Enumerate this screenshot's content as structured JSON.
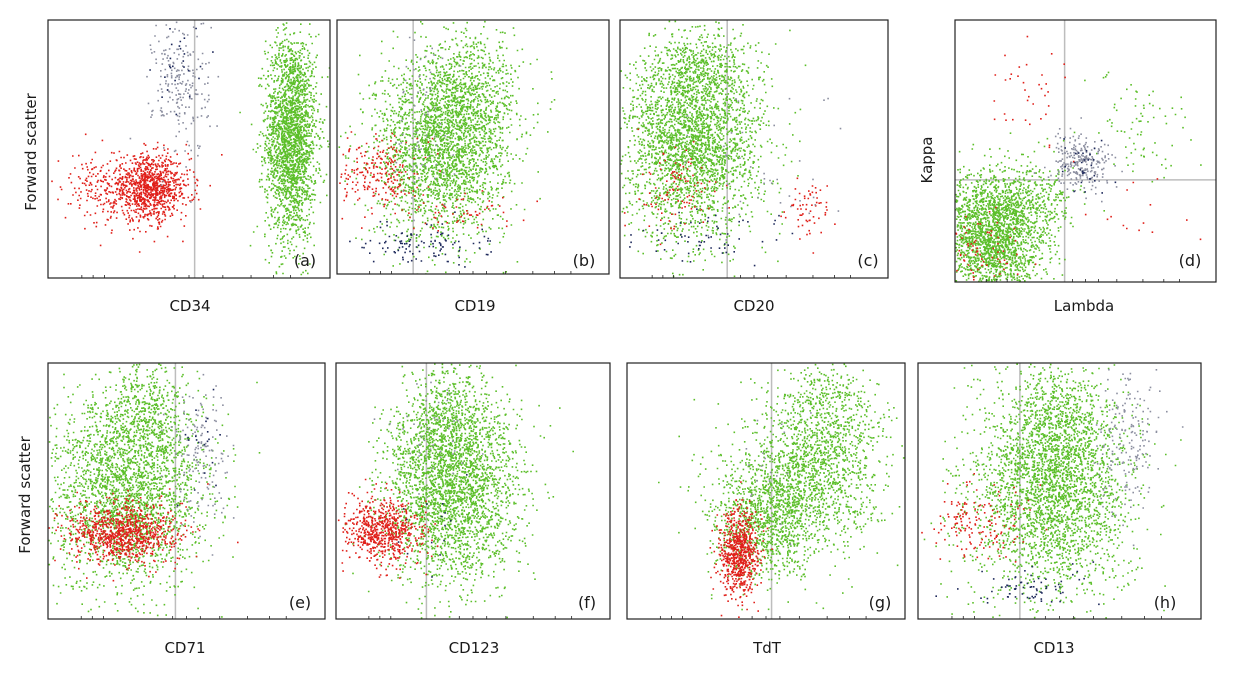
{
  "figure": {
    "row_ylabels": [
      "Forward scatter",
      "Forward scatter"
    ]
  },
  "colors": {
    "green": "#5cbf2a",
    "red": "#e0201a",
    "gray": "#8c8fa0",
    "navy": "#1f2a5c",
    "frame": "#222222",
    "gate": "#bdbdbd"
  },
  "chart_data": [
    {
      "type": "scatter",
      "panel": "(a)",
      "xlabel": "CD34",
      "ylabel": "Forward scatter",
      "xlim": [
        0,
        1
      ],
      "ylim": [
        0,
        1
      ],
      "x_gate": 0.52,
      "y_gate": null,
      "series": [
        {
          "color": "green",
          "clusters": [
            {
              "cx": 0.86,
              "cy": 0.55,
              "sx": 0.045,
              "sy": 0.2,
              "n": 2300
            }
          ]
        },
        {
          "color": "red",
          "clusters": [
            {
              "cx": 0.36,
              "cy": 0.35,
              "sx": 0.07,
              "sy": 0.06,
              "n": 900
            },
            {
              "cx": 0.22,
              "cy": 0.35,
              "sx": 0.1,
              "sy": 0.07,
              "n": 250
            }
          ]
        },
        {
          "color": "gray",
          "clusters": [
            {
              "cx": 0.47,
              "cy": 0.75,
              "sx": 0.05,
              "sy": 0.14,
              "n": 220
            }
          ]
        },
        {
          "color": "navy",
          "clusters": [
            {
              "cx": 0.46,
              "cy": 0.85,
              "sx": 0.04,
              "sy": 0.08,
              "n": 25
            }
          ]
        }
      ]
    },
    {
      "type": "scatter",
      "panel": "(b)",
      "xlabel": "CD19",
      "ylabel": "",
      "xlim": [
        0,
        1
      ],
      "ylim": [
        0,
        1
      ],
      "x_gate": 0.28,
      "y_gate": null,
      "series": [
        {
          "color": "green",
          "clusters": [
            {
              "cx": 0.38,
              "cy": 0.5,
              "sx": 0.12,
              "sy": 0.18,
              "n": 2400
            },
            {
              "cx": 0.5,
              "cy": 0.7,
              "sx": 0.09,
              "sy": 0.14,
              "n": 600
            }
          ]
        },
        {
          "color": "red",
          "clusters": [
            {
              "cx": 0.15,
              "cy": 0.4,
              "sx": 0.07,
              "sy": 0.07,
              "n": 220
            },
            {
              "cx": 0.45,
              "cy": 0.26,
              "sx": 0.1,
              "sy": 0.05,
              "n": 60
            }
          ]
        },
        {
          "color": "navy",
          "clusters": [
            {
              "cx": 0.32,
              "cy": 0.12,
              "sx": 0.12,
              "sy": 0.04,
              "n": 110
            }
          ]
        },
        {
          "color": "gray",
          "clusters": [
            {
              "cx": 0.3,
              "cy": 0.65,
              "sx": 0.06,
              "sy": 0.2,
              "n": 70
            }
          ]
        }
      ]
    },
    {
      "type": "scatter",
      "panel": "(c)",
      "xlabel": "CD20",
      "ylabel": "",
      "xlim": [
        0,
        1
      ],
      "ylim": [
        0,
        1
      ],
      "x_gate": 0.4,
      "y_gate": null,
      "series": [
        {
          "color": "green",
          "clusters": [
            {
              "cx": 0.27,
              "cy": 0.52,
              "sx": 0.13,
              "sy": 0.18,
              "n": 2600
            },
            {
              "cx": 0.3,
              "cy": 0.8,
              "sx": 0.1,
              "sy": 0.1,
              "n": 500
            }
          ]
        },
        {
          "color": "red",
          "clusters": [
            {
              "cx": 0.7,
              "cy": 0.27,
              "sx": 0.04,
              "sy": 0.05,
              "n": 60
            },
            {
              "cx": 0.22,
              "cy": 0.35,
              "sx": 0.08,
              "sy": 0.08,
              "n": 100
            }
          ]
        },
        {
          "color": "navy",
          "clusters": [
            {
              "cx": 0.3,
              "cy": 0.15,
              "sx": 0.12,
              "sy": 0.04,
              "n": 60
            }
          ]
        },
        {
          "color": "gray",
          "clusters": [
            {
              "cx": 0.55,
              "cy": 0.4,
              "sx": 0.15,
              "sy": 0.2,
              "n": 40
            }
          ]
        }
      ]
    },
    {
      "type": "scatter",
      "panel": "(d)",
      "xlabel": "Lambda",
      "ylabel": "Kappa",
      "xlim": [
        0,
        1
      ],
      "ylim": [
        0,
        1
      ],
      "x_gate": 0.42,
      "y_gate": 0.39,
      "series": [
        {
          "color": "green",
          "clusters": [
            {
              "cx": 0.14,
              "cy": 0.18,
              "sx": 0.1,
              "sy": 0.12,
              "n": 2200
            },
            {
              "cx": 0.3,
              "cy": 0.3,
              "sx": 0.08,
              "sy": 0.08,
              "n": 300
            },
            {
              "cx": 0.7,
              "cy": 0.6,
              "sx": 0.1,
              "sy": 0.1,
              "n": 80
            }
          ]
        },
        {
          "color": "gray",
          "clusters": [
            {
              "cx": 0.48,
              "cy": 0.46,
              "sx": 0.06,
              "sy": 0.05,
              "n": 260
            }
          ]
        },
        {
          "color": "red",
          "clusters": [
            {
              "cx": 0.28,
              "cy": 0.72,
              "sx": 0.08,
              "sy": 0.1,
              "n": 35
            },
            {
              "cx": 0.65,
              "cy": 0.25,
              "sx": 0.12,
              "sy": 0.1,
              "n": 15
            },
            {
              "cx": 0.1,
              "cy": 0.1,
              "sx": 0.08,
              "sy": 0.08,
              "n": 80
            }
          ]
        },
        {
          "color": "navy",
          "clusters": [
            {
              "cx": 0.5,
              "cy": 0.45,
              "sx": 0.05,
              "sy": 0.05,
              "n": 30
            }
          ]
        }
      ]
    },
    {
      "type": "scatter",
      "panel": "(e)",
      "xlabel": "CD71",
      "ylabel": "Forward scatter",
      "xlim": [
        0,
        1
      ],
      "ylim": [
        0,
        1
      ],
      "x_gate": 0.46,
      "y_gate": null,
      "series": [
        {
          "color": "green",
          "clusters": [
            {
              "cx": 0.28,
              "cy": 0.5,
              "sx": 0.14,
              "sy": 0.18,
              "n": 2400
            },
            {
              "cx": 0.35,
              "cy": 0.8,
              "sx": 0.08,
              "sy": 0.12,
              "n": 500
            }
          ]
        },
        {
          "color": "red",
          "clusters": [
            {
              "cx": 0.26,
              "cy": 0.34,
              "sx": 0.1,
              "sy": 0.06,
              "n": 900
            }
          ]
        },
        {
          "color": "gray",
          "clusters": [
            {
              "cx": 0.55,
              "cy": 0.65,
              "sx": 0.05,
              "sy": 0.14,
              "n": 150
            }
          ]
        },
        {
          "color": "navy",
          "clusters": [
            {
              "cx": 0.55,
              "cy": 0.7,
              "sx": 0.04,
              "sy": 0.1,
              "n": 20
            }
          ]
        }
      ]
    },
    {
      "type": "scatter",
      "panel": "(f)",
      "xlabel": "CD123",
      "ylabel": "",
      "xlim": [
        0,
        1
      ],
      "ylim": [
        0,
        1
      ],
      "x_gate": 0.33,
      "y_gate": null,
      "series": [
        {
          "color": "green",
          "clusters": [
            {
              "cx": 0.42,
              "cy": 0.5,
              "sx": 0.12,
              "sy": 0.18,
              "n": 2600
            },
            {
              "cx": 0.4,
              "cy": 0.8,
              "sx": 0.09,
              "sy": 0.1,
              "n": 500
            }
          ]
        },
        {
          "color": "red",
          "clusters": [
            {
              "cx": 0.17,
              "cy": 0.35,
              "sx": 0.07,
              "sy": 0.06,
              "n": 650
            }
          ]
        },
        {
          "color": "gray",
          "clusters": [
            {
              "cx": 0.35,
              "cy": 0.7,
              "sx": 0.07,
              "sy": 0.12,
              "n": 40
            }
          ]
        },
        {
          "color": "navy",
          "clusters": [
            {
              "cx": 0.35,
              "cy": 0.4,
              "sx": 0.08,
              "sy": 0.1,
              "n": 15
            }
          ]
        }
      ]
    },
    {
      "type": "scatter",
      "panel": "(g)",
      "xlabel": "TdT",
      "ylabel": "",
      "xlim": [
        0,
        1
      ],
      "ylim": [
        0,
        1
      ],
      "x_gate": 0.52,
      "y_gate": null,
      "series": [
        {
          "color": "green",
          "clusters": [
            {
              "cx": 0.5,
              "cy": 0.4,
              "sx": 0.1,
              "sy": 0.12,
              "n": 1100
            },
            {
              "cx": 0.68,
              "cy": 0.6,
              "sx": 0.12,
              "sy": 0.16,
              "n": 1300
            },
            {
              "cx": 0.72,
              "cy": 0.85,
              "sx": 0.08,
              "sy": 0.08,
              "n": 250
            }
          ]
        },
        {
          "color": "red",
          "clusters": [
            {
              "cx": 0.4,
              "cy": 0.25,
              "sx": 0.035,
              "sy": 0.08,
              "n": 700
            }
          ]
        },
        {
          "color": "gray",
          "clusters": [
            {
              "cx": 0.55,
              "cy": 0.5,
              "sx": 0.1,
              "sy": 0.15,
              "n": 20
            }
          ]
        }
      ]
    },
    {
      "type": "scatter",
      "panel": "(h)",
      "xlabel": "CD13",
      "ylabel": "",
      "xlim": [
        0,
        1
      ],
      "ylim": [
        0,
        1
      ],
      "x_gate": 0.36,
      "y_gate": null,
      "series": [
        {
          "color": "green",
          "clusters": [
            {
              "cx": 0.47,
              "cy": 0.5,
              "sx": 0.14,
              "sy": 0.2,
              "n": 2700
            },
            {
              "cx": 0.5,
              "cy": 0.8,
              "sx": 0.09,
              "sy": 0.12,
              "n": 500
            }
          ]
        },
        {
          "color": "gray",
          "clusters": [
            {
              "cx": 0.74,
              "cy": 0.7,
              "sx": 0.06,
              "sy": 0.15,
              "n": 180
            }
          ]
        },
        {
          "color": "red",
          "clusters": [
            {
              "cx": 0.22,
              "cy": 0.38,
              "sx": 0.09,
              "sy": 0.07,
              "n": 150
            }
          ]
        },
        {
          "color": "navy",
          "clusters": [
            {
              "cx": 0.38,
              "cy": 0.12,
              "sx": 0.1,
              "sy": 0.04,
              "n": 70
            }
          ]
        }
      ]
    }
  ]
}
